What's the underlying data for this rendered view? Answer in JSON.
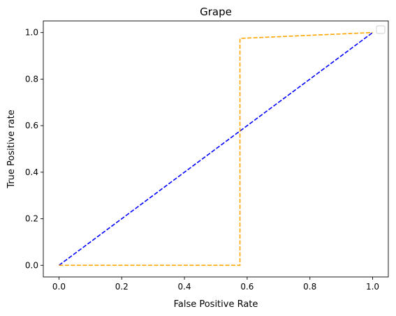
{
  "chart_data": {
    "type": "line",
    "title": "Grape",
    "xlabel": "False Positive Rate",
    "ylabel": "True Positive rate",
    "xlim": [
      -0.05,
      1.05
    ],
    "ylim": [
      -0.05,
      1.05
    ],
    "x_ticks": [
      0.0,
      0.2,
      0.4,
      0.6,
      0.8,
      1.0
    ],
    "y_ticks": [
      0.0,
      0.2,
      0.4,
      0.6,
      0.8,
      1.0
    ],
    "x_tick_labels": [
      "0.0",
      "0.2",
      "0.4",
      "0.6",
      "0.8",
      "1.0"
    ],
    "y_tick_labels": [
      "0.0",
      "0.2",
      "0.4",
      "0.6",
      "0.8",
      "1.0"
    ],
    "grid": false,
    "legend": {
      "placement": "top-right",
      "entries": []
    },
    "series": [
      {
        "color": "#0000ff",
        "linestyle": "dashed",
        "x": [
          0.0,
          1.0
        ],
        "y": [
          0.0,
          1.0
        ]
      },
      {
        "color": "#ffa500",
        "linestyle": "dashed",
        "x": [
          0.0,
          0.577,
          0.577,
          1.0
        ],
        "y": [
          0.0,
          0.0,
          0.975,
          1.0
        ]
      }
    ]
  }
}
